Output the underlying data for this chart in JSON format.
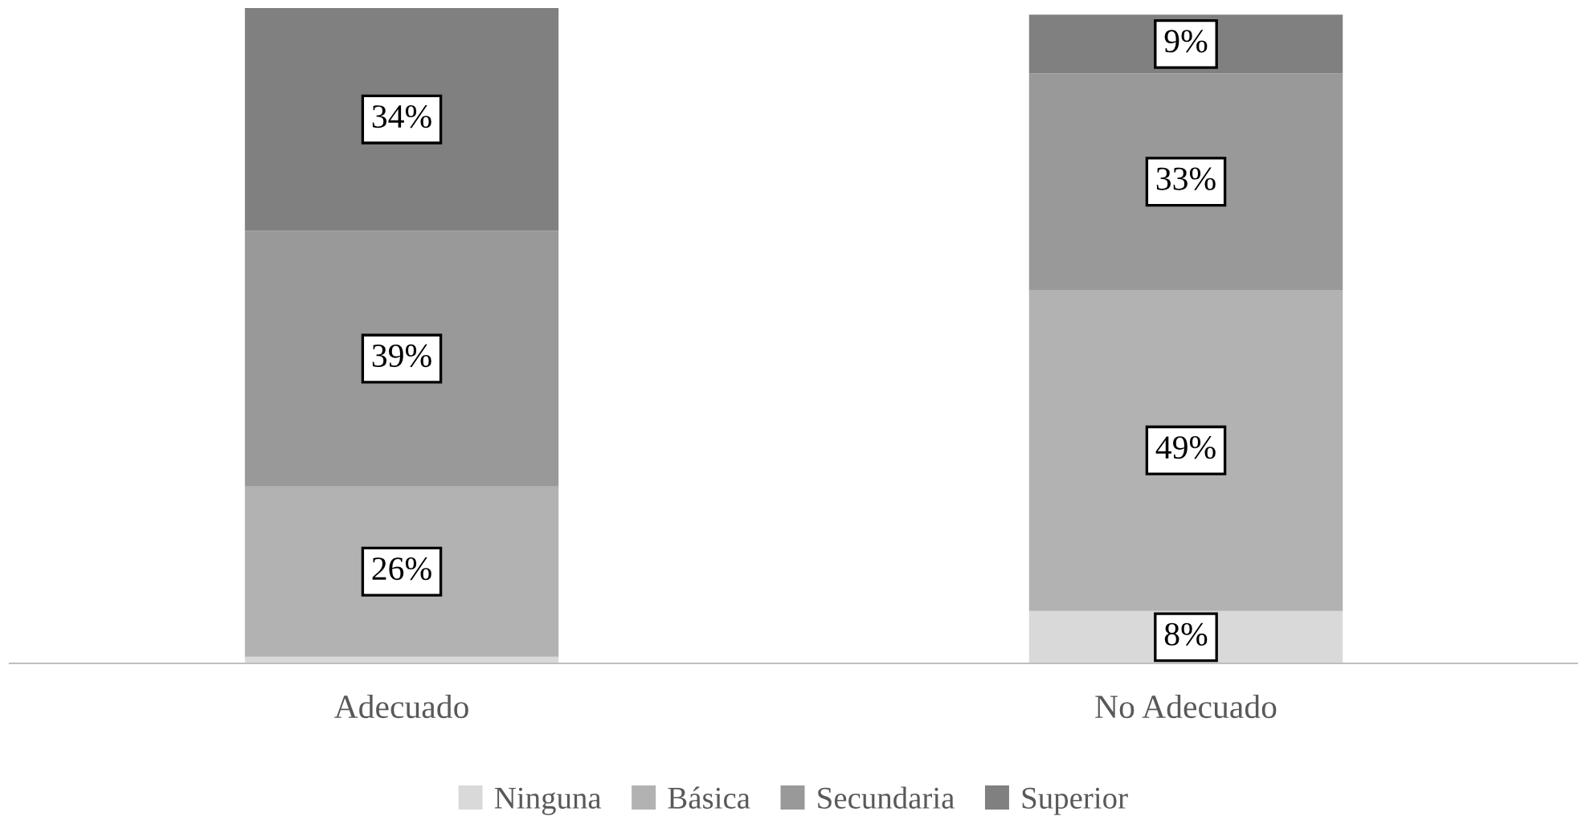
{
  "chart_data": {
    "type": "bar",
    "stacked": true,
    "categories": [
      "Adecuado",
      "No Adecuado"
    ],
    "ylim": [
      0,
      100
    ],
    "legend": "bottom",
    "grid": false,
    "series": [
      {
        "name": "Ninguna",
        "color": "#d9d9d9",
        "values": [
          1,
          8
        ],
        "value_labels": [
          null,
          "8%"
        ]
      },
      {
        "name": "Básica",
        "color": "#b2b2b2",
        "values": [
          26,
          49
        ],
        "value_labels": [
          "26%",
          "49%"
        ]
      },
      {
        "name": "Secundaria",
        "color": "#999999",
        "values": [
          39,
          33
        ],
        "value_labels": [
          "39%",
          "33%"
        ]
      },
      {
        "name": "Superior",
        "color": "#808080",
        "values": [
          34,
          9
        ],
        "value_labels": [
          "34%",
          "9%"
        ]
      }
    ]
  }
}
